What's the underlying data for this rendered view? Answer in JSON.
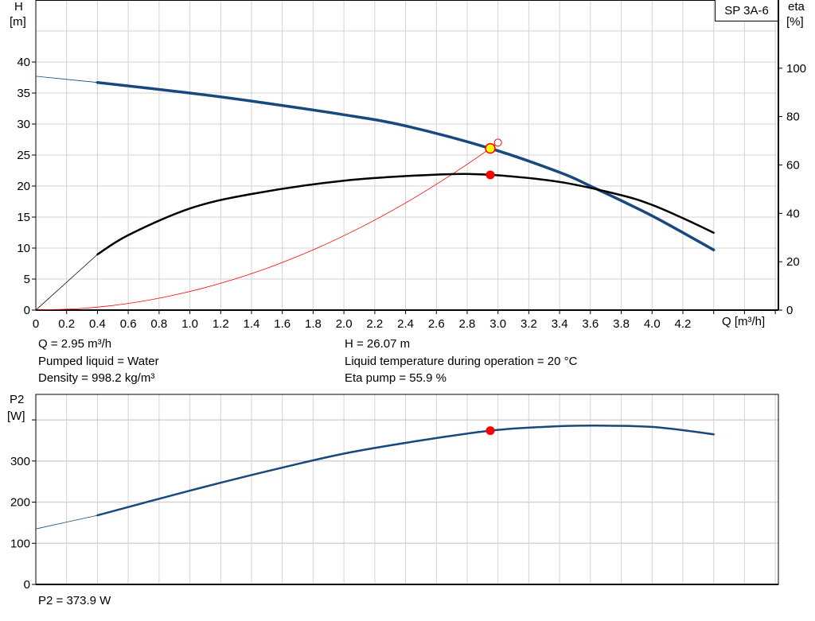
{
  "chart_data": [
    {
      "type": "line",
      "title": "SP 3A-6",
      "xlabel": "Q [m³/h]",
      "ylabel": "H\n[m]",
      "ylabel_right": "eta\n[%]",
      "xlim": [
        0,
        4.82
      ],
      "ylim": [
        0,
        50
      ],
      "ylim_right": [
        0,
        128.2
      ],
      "grid": true,
      "x_ticks": [
        "0",
        "0.2",
        "0.4",
        "0.6",
        "0.8",
        "1.0",
        "1.2",
        "1.4",
        "1.6",
        "1.8",
        "2.0",
        "2.2",
        "2.4",
        "2.6",
        "2.8",
        "3.0",
        "3.2",
        "3.4",
        "3.6",
        "3.8",
        "4.0",
        "4.2"
      ],
      "y_ticks": [
        "0",
        "5",
        "10",
        "15",
        "20",
        "25",
        "30",
        "35",
        "40"
      ],
      "y_ticks_right": [
        "0",
        "20",
        "40",
        "60",
        "80",
        "100"
      ],
      "series": [
        {
          "name": "H",
          "axis": "left",
          "color": "#17497e",
          "x": [
            0,
            0.4,
            1.0,
            1.4,
            2.0,
            2.4,
            2.95,
            3.4,
            3.6,
            4.0,
            4.4
          ],
          "y": [
            37.7,
            36.7,
            35.0,
            33.7,
            31.5,
            29.7,
            26.07,
            22.2,
            20.0,
            15.2,
            9.7
          ]
        },
        {
          "name": "eta",
          "axis": "right",
          "color": "#000000",
          "x": [
            0,
            0.4,
            0.6,
            1.0,
            1.4,
            2.0,
            2.6,
            2.95,
            3.4,
            3.8,
            4.0,
            4.2,
            4.4
          ],
          "y": [
            0,
            23,
            31,
            42,
            48,
            53.5,
            56,
            55.9,
            53,
            47.5,
            43.5,
            38,
            32
          ]
        },
        {
          "name": "system curve",
          "axis": "left",
          "color": "#ff0000",
          "x": [
            0,
            0.3,
            0.6,
            0.9,
            1.2,
            1.5,
            1.8,
            2.1,
            2.4,
            2.7,
            2.95,
            3.0
          ],
          "y": [
            0,
            0.27,
            1.08,
            2.43,
            4.32,
            6.75,
            9.72,
            13.23,
            17.28,
            21.87,
            26.07,
            27.0
          ]
        }
      ],
      "duty_point": {
        "q": 2.95,
        "h": 26.07,
        "eta": 55.9
      }
    },
    {
      "type": "line",
      "ylabel": "P2\n[W]",
      "xlim": [
        0,
        4.82
      ],
      "ylim": [
        0,
        462
      ],
      "grid": true,
      "y_ticks": [
        "0",
        "100",
        "200",
        "300"
      ],
      "series": [
        {
          "name": "P2",
          "color": "#17497e",
          "x": [
            0,
            0.4,
            1.0,
            1.5,
            2.0,
            2.5,
            2.95,
            3.3,
            3.6,
            4.0,
            4.4
          ],
          "y": [
            135,
            168,
            228,
            275,
            318,
            350,
            373.9,
            383,
            386,
            383,
            365
          ]
        }
      ],
      "duty_point": {
        "q": 2.95,
        "p2": 373.9
      }
    }
  ],
  "labels": {
    "h_axis_title": "H",
    "h_axis_unit": "[m]",
    "eta_axis_title": "eta",
    "eta_axis_unit": "[%]",
    "p2_axis_title": "P2",
    "p2_axis_unit": "[W]",
    "q_axis": "Q [m³/h]",
    "pump_model": "SP 3A-6"
  },
  "info": {
    "q": "Q = 2.95 m³/h",
    "h": "H = 26.07 m",
    "liquid": "Pumped liquid = Water",
    "temperature": "Liquid temperature during operation = 20 °C",
    "density": "Density = 998.2 kg/m³",
    "eta": "Eta pump = 55.9 %",
    "p2": "P2 = 373.9 W"
  }
}
